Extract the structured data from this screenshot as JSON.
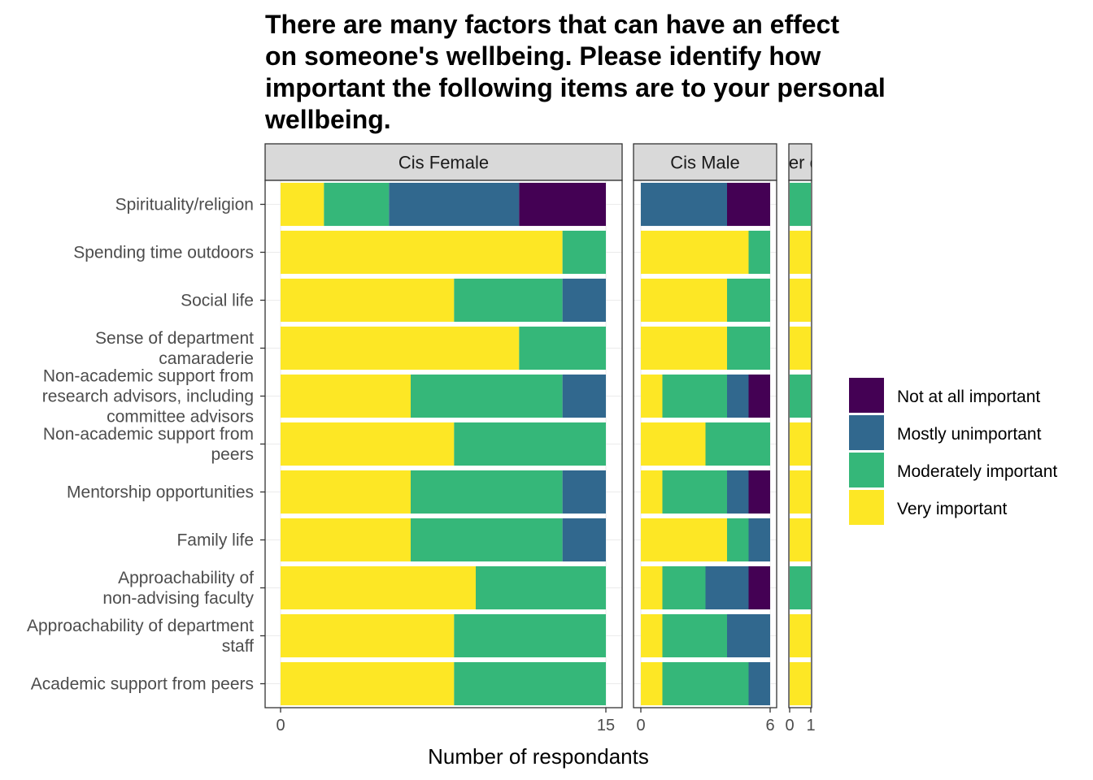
{
  "chart_data": {
    "type": "bar",
    "orientation": "horizontal",
    "stacked": true,
    "title": "There are many factors that can have an effect on someone's wellbeing. Please identify how important the following items are to your personal wellbeing.",
    "title_lines": [
      "There are many factors that can have an effect",
      "on someone's wellbeing. Please identify how",
      "important the following items are to your personal",
      "wellbeing."
    ],
    "xlabel": "Number of respondants",
    "ylabel": "",
    "categories": [
      "Spirituality/religion",
      "Spending time outdoors",
      "Social life",
      "Sense of department camaraderie",
      "Non-academic support from research advisors, including committee advisors",
      "Non-academic support from peers",
      "Mentorship opportunities",
      "Family life",
      "Approachability of non-advising faculty",
      "Approachability of department staff",
      "Academic support from peers"
    ],
    "category_label_lines": [
      [
        "Spirituality/religion"
      ],
      [
        "Spending time outdoors"
      ],
      [
        "Social life"
      ],
      [
        "Sense of department",
        "camaraderie"
      ],
      [
        "Non-academic support from",
        "research advisors, including",
        "committee advisors"
      ],
      [
        "Non-academic support from",
        "peers"
      ],
      [
        "Mentorship opportunities"
      ],
      [
        "Family life"
      ],
      [
        "Approachability of",
        "non-advising faculty"
      ],
      [
        "Approachability of department",
        "staff"
      ],
      [
        "Academic support from peers"
      ]
    ],
    "stack_order": [
      "Very important",
      "Moderately important",
      "Mostly unimportant",
      "Not at all important"
    ],
    "legend": {
      "position": "right",
      "entries": [
        "Not at all important",
        "Mostly unimportant",
        "Moderately important",
        "Very important"
      ],
      "colors": {
        "Not at all important": "#440154",
        "Mostly unimportant": "#31688E",
        "Moderately important": "#35B779",
        "Very important": "#FDE725"
      }
    },
    "panels": [
      {
        "name": "Cis Female",
        "strip_label": "Cis Female",
        "xlim": [
          0,
          15
        ],
        "ticks": [
          0,
          15
        ],
        "series": [
          {
            "name": "Very important",
            "values": [
              2,
              13,
              8,
              11,
              6,
              8,
              6,
              6,
              9,
              8,
              8
            ]
          },
          {
            "name": "Moderately important",
            "values": [
              3,
              2,
              5,
              4,
              7,
              7,
              7,
              7,
              6,
              7,
              7
            ]
          },
          {
            "name": "Mostly unimportant",
            "values": [
              6,
              0,
              2,
              0,
              2,
              0,
              2,
              2,
              0,
              0,
              0
            ]
          },
          {
            "name": "Not at all important",
            "values": [
              4,
              0,
              0,
              0,
              0,
              0,
              0,
              0,
              0,
              0,
              0
            ]
          }
        ]
      },
      {
        "name": "Cis Male",
        "strip_label": "Cis Male",
        "xlim": [
          0,
          6
        ],
        "ticks": [
          0,
          6
        ],
        "series": [
          {
            "name": "Very important",
            "values": [
              0,
              5,
              4,
              4,
              1,
              3,
              1,
              4,
              1,
              1,
              1
            ]
          },
          {
            "name": "Moderately important",
            "values": [
              0,
              1,
              2,
              2,
              3,
              3,
              3,
              1,
              2,
              3,
              4
            ]
          },
          {
            "name": "Mostly unimportant",
            "values": [
              4,
              0,
              0,
              0,
              1,
              0,
              1,
              1,
              2,
              2,
              1
            ]
          },
          {
            "name": "Not at all important",
            "values": [
              2,
              0,
              0,
              0,
              1,
              0,
              1,
              0,
              1,
              0,
              0
            ]
          }
        ]
      },
      {
        "name": "Gender queer",
        "strip_label": "Gender queer",
        "xlim": [
          0,
          1
        ],
        "ticks": [
          0,
          1
        ],
        "series": [
          {
            "name": "Very important",
            "values": [
              0,
              1,
              1,
              1,
              0,
              1,
              1,
              1,
              0,
              1,
              1
            ]
          },
          {
            "name": "Moderately important",
            "values": [
              1,
              0,
              0,
              0,
              1,
              0,
              0,
              0,
              1,
              0,
              0
            ]
          },
          {
            "name": "Mostly unimportant",
            "values": [
              0,
              0,
              0,
              0,
              0,
              0,
              0,
              0,
              0,
              0,
              0
            ]
          },
          {
            "name": "Not at all important",
            "values": [
              0,
              0,
              0,
              0,
              0,
              0,
              0,
              0,
              0,
              0,
              0
            ]
          }
        ]
      }
    ]
  }
}
